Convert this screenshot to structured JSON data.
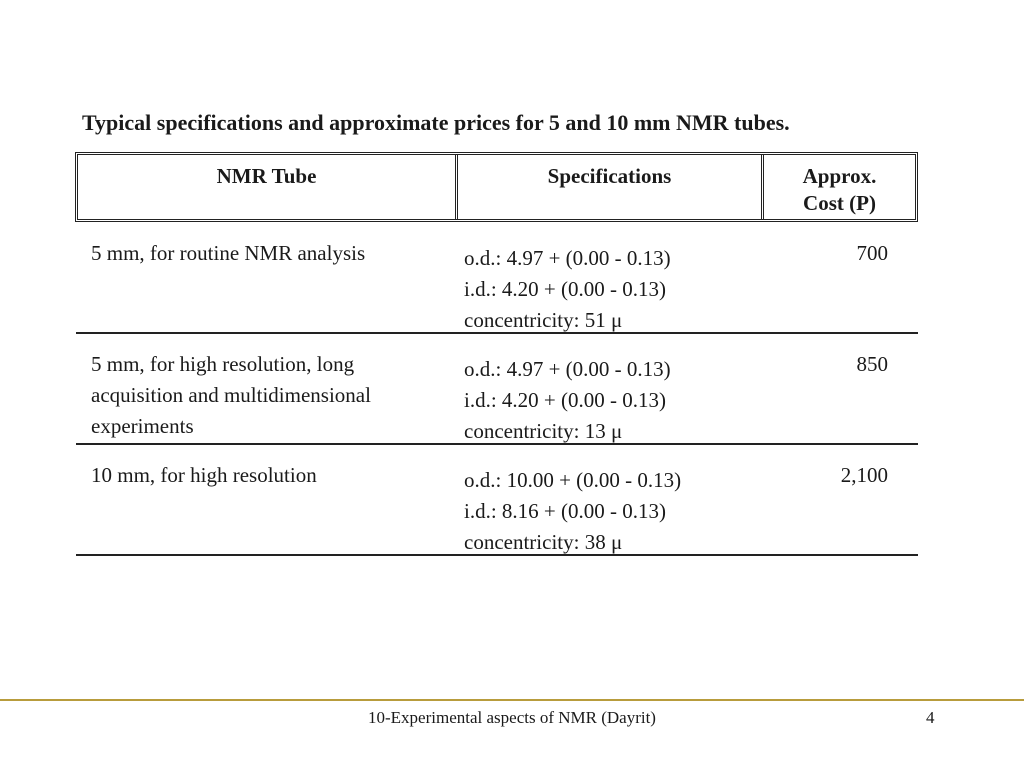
{
  "title": "Typical specifications and approximate prices for 5 and 10 mm NMR tubes.",
  "table": {
    "headers": {
      "tube": "NMR Tube",
      "specs": "Specifications",
      "cost_line1": "Approx.",
      "cost_line2": "Cost (P)"
    },
    "rows": [
      {
        "desc_lines": [
          "5 mm, for routine NMR analysis"
        ],
        "spec_lines": [
          "o.d.: 4.97 + (0.00 - 0.13)",
          "i.d.: 4.20 + (0.00 - 0.13)",
          "concentricity: 51 μ"
        ],
        "cost": "700"
      },
      {
        "desc_lines": [
          "5 mm, for high resolution, long",
          "acquisition and multidimensional",
          "experiments"
        ],
        "spec_lines": [
          "o.d.: 4.97 + (0.00 - 0.13)",
          "i.d.: 4.20 + (0.00 - 0.13)",
          "concentricity: 13 μ"
        ],
        "cost": "850"
      },
      {
        "desc_lines": [
          "10 mm, for high resolution"
        ],
        "spec_lines": [
          "o.d.: 10.00 + (0.00 - 0.13)",
          "i.d.: 8.16 + (0.00 - 0.13)",
          "concentricity: 38 μ"
        ],
        "cost": "2,100"
      }
    ]
  },
  "footer": {
    "text": "10-Experimental aspects of NMR (Dayrit)",
    "page_number": "4"
  }
}
